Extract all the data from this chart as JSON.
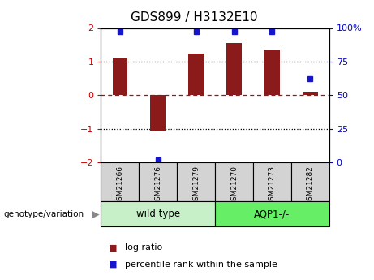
{
  "title": "GDS899 / H3132E10",
  "samples": [
    "GSM21266",
    "GSM21276",
    "GSM21279",
    "GSM21270",
    "GSM21273",
    "GSM21282"
  ],
  "log_ratio": [
    1.1,
    -1.05,
    1.25,
    1.55,
    1.35,
    0.1
  ],
  "percentile_rank": [
    97,
    2,
    97,
    97,
    97,
    62
  ],
  "bar_color": "#8B1A1A",
  "dot_color": "#1515cc",
  "ylim": [
    -2,
    2
  ],
  "y2lim": [
    0,
    100
  ],
  "yticks": [
    -2,
    -1,
    0,
    1,
    2
  ],
  "y2ticks": [
    0,
    25,
    50,
    75,
    100
  ],
  "y2ticklabels": [
    "0",
    "25",
    "50",
    "75",
    "100%"
  ],
  "ax_left_color": "#cc0000",
  "ax_right_color": "#0000cc",
  "sample_box_color": "#d3d3d3",
  "group_colors": [
    "#c8f0c8",
    "#66ee66"
  ],
  "groups": [
    {
      "label": "wild type",
      "start": 0,
      "end": 3
    },
    {
      "label": "AQP1-/-",
      "start": 3,
      "end": 6
    }
  ],
  "genotype_label": "genotype/variation",
  "legend_red_label": "log ratio",
  "legend_blue_label": "percentile rank within the sample",
  "bar_width": 0.4,
  "title_fontsize": 11,
  "tick_fontsize": 8,
  "sample_fontsize": 6.5,
  "group_fontsize": 8.5,
  "legend_fontsize": 8
}
